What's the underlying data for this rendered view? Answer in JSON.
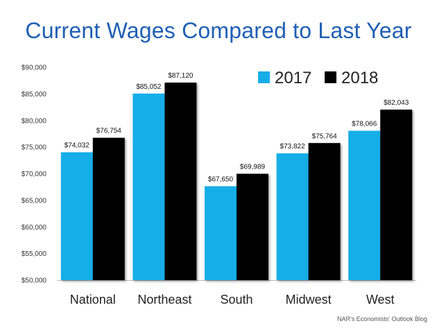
{
  "chart_data": {
    "type": "bar",
    "title": "Current Wages Compared to Last Year",
    "categories": [
      "National",
      "Northeast",
      "South",
      "Midwest",
      "West"
    ],
    "series": [
      {
        "name": "2017",
        "color": "#17aee8",
        "values": [
          74032,
          85052,
          67650,
          73822,
          78066
        ],
        "labels": [
          "$74,032",
          "$85,052",
          "$67,650",
          "$73,822",
          "$78,066"
        ]
      },
      {
        "name": "2018",
        "color": "#000000",
        "values": [
          76754,
          87120,
          69989,
          75764,
          82043
        ],
        "labels": [
          "$76,754",
          "$87,120",
          "$69,989",
          "$75,764",
          "$82,043"
        ]
      }
    ],
    "ylim": [
      50000,
      90000
    ],
    "yticks": [
      50000,
      55000,
      60000,
      65000,
      70000,
      75000,
      80000,
      85000,
      90000
    ],
    "ytick_labels": [
      "$50,000",
      "$55,000",
      "$60,000",
      "$65,000",
      "$70,000",
      "$75,000",
      "$80,000",
      "$85,000",
      "$90,000"
    ],
    "legend_placement": "top-right",
    "grid": false
  },
  "source_note": "NAR's Economists' Outlook Blog"
}
